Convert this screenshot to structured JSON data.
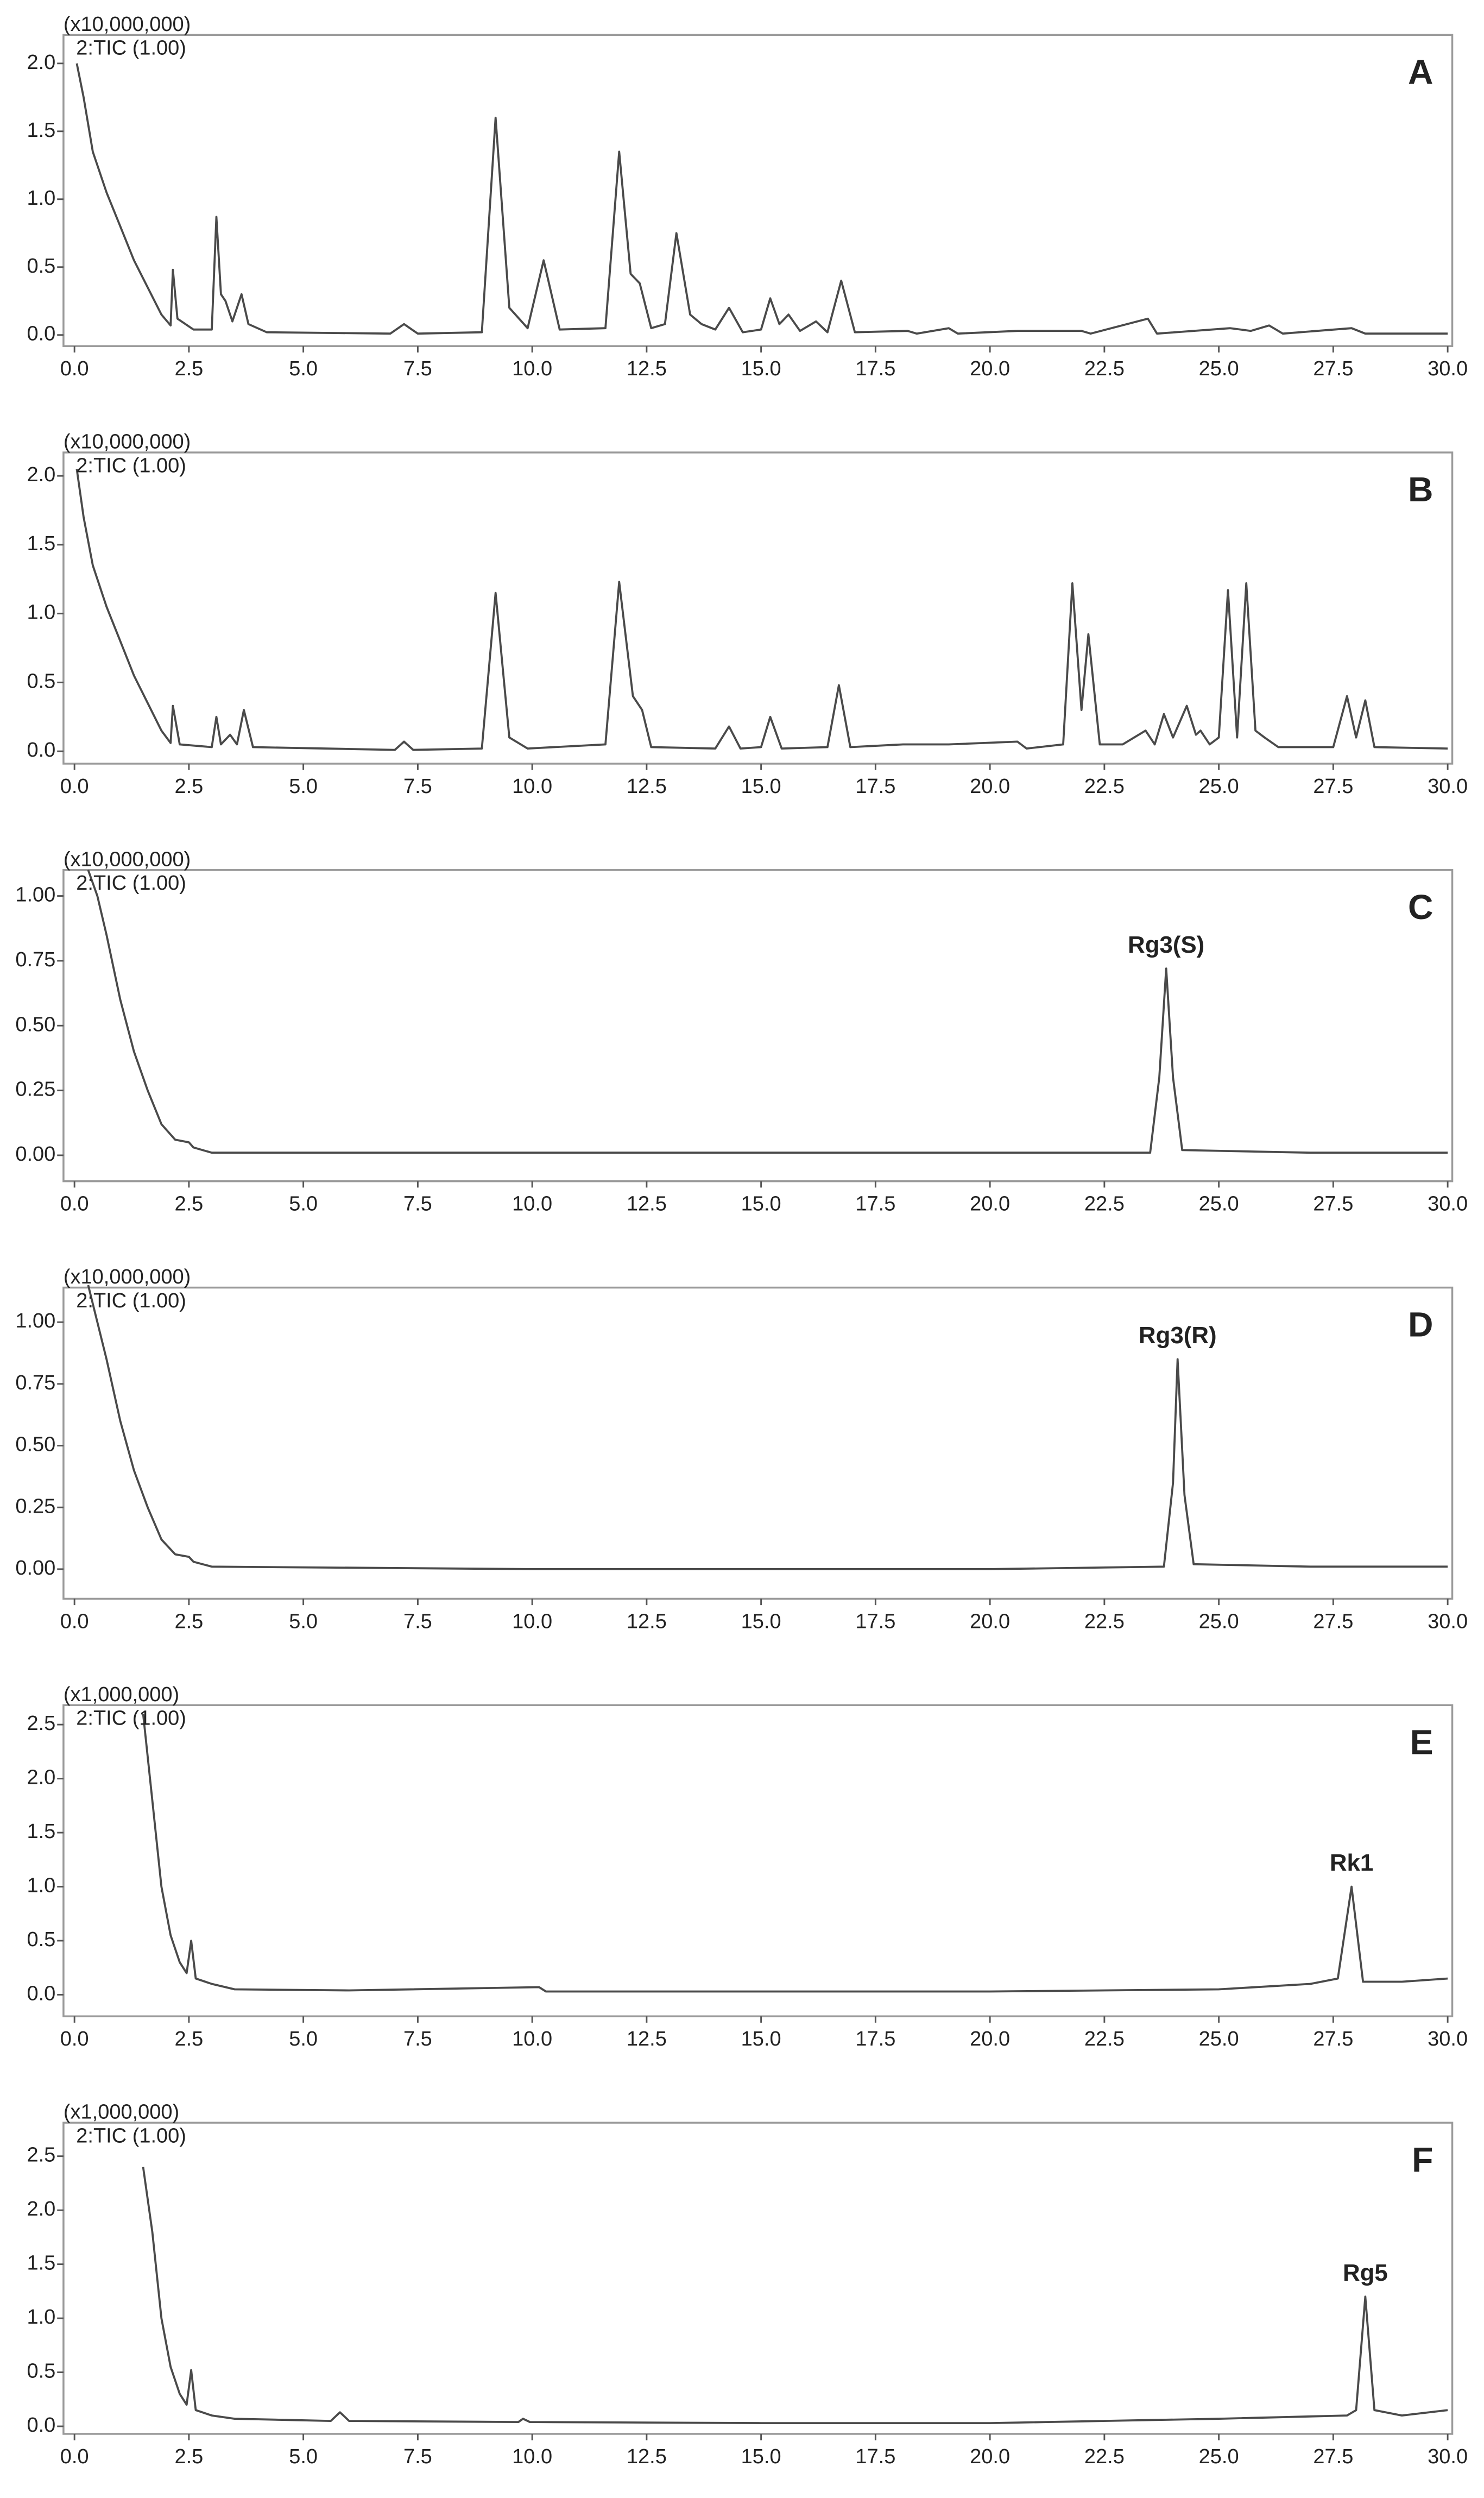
{
  "chart_data": [
    {
      "type": "line",
      "title": "A",
      "y_multiplier": "(x10,000,000)",
      "x": [
        0.05,
        0.2,
        0.4,
        0.7,
        1.0,
        1.3,
        1.6,
        1.9,
        2.1,
        2.15,
        2.25,
        2.6,
        3.0,
        3.1,
        3.2,
        3.3,
        3.45,
        3.65,
        3.8,
        4.2,
        6.9,
        7.2,
        7.5,
        8.9,
        9.2,
        9.5,
        9.9,
        10.25,
        10.6,
        11.6,
        11.9,
        12.15,
        12.35,
        12.6,
        12.9,
        13.15,
        13.45,
        13.7,
        14.0,
        14.3,
        14.6,
        15.0,
        15.2,
        15.4,
        15.6,
        15.85,
        16.2,
        16.45,
        16.75,
        17.05,
        18.2,
        18.4,
        19.1,
        19.3,
        20.6,
        22.0,
        22.2,
        23.45,
        23.65,
        25.25,
        25.7,
        26.1,
        26.4,
        27.9,
        28.2,
        30.0
      ],
      "series": [
        {
          "name": "2:TIC (1.00)",
          "color": "#4a4a4a",
          "values": [
            2.0,
            1.75,
            1.35,
            1.05,
            0.8,
            0.55,
            0.35,
            0.15,
            0.07,
            0.48,
            0.12,
            0.04,
            0.04,
            0.87,
            0.3,
            0.25,
            0.1,
            0.3,
            0.08,
            0.02,
            0.01,
            0.08,
            0.01,
            0.02,
            1.6,
            0.2,
            0.05,
            0.55,
            0.04,
            0.05,
            1.35,
            0.45,
            0.38,
            0.05,
            0.08,
            0.75,
            0.15,
            0.08,
            0.04,
            0.2,
            0.02,
            0.04,
            0.27,
            0.08,
            0.15,
            0.03,
            0.1,
            0.02,
            0.4,
            0.02,
            0.03,
            0.01,
            0.05,
            0.01,
            0.03,
            0.03,
            0.01,
            0.12,
            0.01,
            0.05,
            0.03,
            0.07,
            0.01,
            0.05,
            0.01,
            0.01
          ]
        }
      ],
      "xlim": [
        -0.24,
        30.1
      ],
      "xticks": [
        {
          "value": 0,
          "label": "0.0"
        },
        2.5,
        {
          "value": 5,
          "label": "5.0"
        },
        7.5,
        {
          "value": 10,
          "label": "10.0"
        },
        12.5,
        {
          "value": 15,
          "label": "15.0"
        },
        17.5,
        {
          "value": 20,
          "label": "20.0"
        },
        22.5,
        {
          "value": 25,
          "label": "25.0"
        },
        27.5,
        {
          "value": 30,
          "label": "30.0"
        }
      ],
      "ylim": [
        -0.082,
        2.21
      ],
      "yticks": [
        {
          "value": 0,
          "label": "0.0"
        },
        0.5,
        {
          "value": 1,
          "label": "1.0"
        },
        1.5,
        {
          "value": 2,
          "label": "2.0"
        }
      ]
    },
    {
      "type": "line",
      "title": "B",
      "y_multiplier": "(x10,000,000)",
      "x": [
        0.05,
        0.2,
        0.4,
        0.7,
        1.0,
        1.3,
        1.6,
        1.9,
        2.1,
        2.15,
        2.3,
        3.0,
        3.1,
        3.2,
        3.4,
        3.55,
        3.7,
        3.9,
        7.0,
        7.2,
        7.4,
        8.9,
        9.2,
        9.5,
        9.9,
        11.6,
        11.9,
        12.2,
        12.4,
        12.6,
        14.0,
        14.3,
        14.55,
        15.0,
        15.2,
        15.45,
        16.45,
        16.7,
        16.95,
        18.1,
        19.1,
        20.6,
        20.8,
        21.6,
        21.8,
        22.0,
        22.15,
        22.4,
        22.9,
        23.4,
        23.6,
        23.8,
        24.0,
        24.3,
        24.5,
        24.6,
        24.8,
        25.0,
        25.2,
        25.4,
        25.6,
        25.8,
        26.0,
        26.3,
        27.5,
        27.8,
        28.0,
        28.2,
        28.4,
        30.0
      ],
      "series": [
        {
          "name": "2:TIC (1.00)",
          "color": "#4a4a4a",
          "values": [
            2.05,
            1.7,
            1.35,
            1.05,
            0.8,
            0.55,
            0.35,
            0.15,
            0.06,
            0.33,
            0.05,
            0.03,
            0.25,
            0.05,
            0.12,
            0.05,
            0.3,
            0.03,
            0.01,
            0.07,
            0.01,
            0.02,
            1.15,
            0.1,
            0.02,
            0.05,
            1.23,
            0.4,
            0.3,
            0.03,
            0.02,
            0.18,
            0.02,
            0.03,
            0.25,
            0.02,
            0.03,
            0.48,
            0.03,
            0.05,
            0.05,
            0.07,
            0.02,
            0.05,
            1.22,
            0.3,
            0.85,
            0.05,
            0.05,
            0.15,
            0.05,
            0.27,
            0.1,
            0.33,
            0.12,
            0.15,
            0.05,
            0.1,
            1.17,
            0.1,
            1.22,
            0.15,
            0.1,
            0.03,
            0.03,
            0.4,
            0.1,
            0.37,
            0.03,
            0.02
          ]
        }
      ],
      "xlim": [
        -0.24,
        30.1
      ],
      "xticks": [
        {
          "value": 0,
          "label": "0.0"
        },
        2.5,
        {
          "value": 5,
          "label": "5.0"
        },
        7.5,
        {
          "value": 10,
          "label": "10.0"
        },
        12.5,
        {
          "value": 15,
          "label": "15.0"
        },
        17.5,
        {
          "value": 20,
          "label": "20.0"
        },
        22.5,
        {
          "value": 25,
          "label": "25.0"
        },
        27.5,
        {
          "value": 30,
          "label": "30.0"
        }
      ],
      "ylim": [
        -0.09,
        2.17
      ],
      "yticks": [
        {
          "value": 0,
          "label": "0.0"
        },
        0.5,
        {
          "value": 1,
          "label": "1.0"
        },
        1.5,
        {
          "value": 2,
          "label": "2.0"
        }
      ]
    },
    {
      "type": "line",
      "title": "C",
      "y_multiplier": "(x10,000,000)",
      "annotation": "Rg3(S)",
      "x": [
        0.3,
        0.5,
        0.7,
        1.0,
        1.3,
        1.6,
        1.9,
        2.2,
        2.5,
        2.6,
        3.0,
        10.0,
        20.0,
        23.5,
        23.7,
        23.85,
        24.0,
        24.2,
        27.0,
        30.0
      ],
      "series": [
        {
          "name": "2:TIC (1.00)",
          "color": "#4a4a4a",
          "values": [
            1.1,
            1.0,
            0.85,
            0.6,
            0.4,
            0.25,
            0.12,
            0.06,
            0.05,
            0.03,
            0.01,
            0.01,
            0.01,
            0.01,
            0.3,
            0.72,
            0.3,
            0.02,
            0.01,
            0.01
          ]
        }
      ],
      "xlim": [
        -0.24,
        30.1
      ],
      "xticks": [
        {
          "value": 0,
          "label": "0.0"
        },
        2.5,
        {
          "value": 5,
          "label": "5.0"
        },
        7.5,
        {
          "value": 10,
          "label": "10.0"
        },
        12.5,
        {
          "value": 15,
          "label": "15.0"
        },
        17.5,
        {
          "value": 20,
          "label": "20.0"
        },
        22.5,
        {
          "value": 25,
          "label": "25.0"
        },
        27.5,
        {
          "value": 30,
          "label": "30.0"
        }
      ],
      "ylim": [
        -0.1,
        1.1
      ],
      "yticks": [
        {
          "value": 0,
          "label": "0.00"
        },
        0.25,
        {
          "value": 0.5,
          "label": "0.50"
        },
        0.75,
        {
          "value": 1,
          "label": "1.00"
        }
      ]
    },
    {
      "type": "line",
      "title": "D",
      "y_multiplier": "(x10,000,000)",
      "annotation": "Rg3(R)",
      "x": [
        0.3,
        0.5,
        0.7,
        1.0,
        1.3,
        1.6,
        1.9,
        2.2,
        2.5,
        2.6,
        3.0,
        10.0,
        20.0,
        23.8,
        24.0,
        24.1,
        24.25,
        24.45,
        27.0,
        30.0
      ],
      "series": [
        {
          "name": "2:TIC (1.00)",
          "color": "#4a4a4a",
          "values": [
            1.15,
            1.0,
            0.85,
            0.6,
            0.4,
            0.25,
            0.12,
            0.06,
            0.05,
            0.03,
            0.01,
            0,
            0,
            0.01,
            0.35,
            0.85,
            0.3,
            0.02,
            0.01,
            0.01
          ]
        }
      ],
      "xlim": [
        -0.24,
        30.1
      ],
      "xticks": [
        {
          "value": 0,
          "label": "0.0"
        },
        2.5,
        {
          "value": 5,
          "label": "5.0"
        },
        7.5,
        {
          "value": 10,
          "label": "10.0"
        },
        12.5,
        {
          "value": 15,
          "label": "15.0"
        },
        17.5,
        {
          "value": 20,
          "label": "20.0"
        },
        22.5,
        {
          "value": 25,
          "label": "25.0"
        },
        27.5,
        {
          "value": 30,
          "label": "30.0"
        }
      ],
      "ylim": [
        -0.12,
        1.14
      ],
      "yticks": [
        {
          "value": 0,
          "label": "0.00"
        },
        0.25,
        {
          "value": 0.5,
          "label": "0.50"
        },
        0.75,
        {
          "value": 1,
          "label": "1.00"
        }
      ]
    },
    {
      "type": "line",
      "title": "E",
      "y_multiplier": "(x1,000,000)",
      "annotation": "Rk1",
      "x": [
        1.5,
        1.7,
        1.9,
        2.1,
        2.3,
        2.45,
        2.55,
        2.65,
        3.0,
        3.5,
        6.0,
        10.15,
        10.3,
        15.0,
        20.0,
        25.0,
        27.0,
        27.6,
        27.9,
        28.15,
        29.0,
        30.0
      ],
      "series": [
        {
          "name": "2:TIC (1.00)",
          "color": "#4a4a4a",
          "values": [
            2.6,
            1.8,
            1.0,
            0.55,
            0.3,
            0.2,
            0.5,
            0.15,
            0.1,
            0.05,
            0.04,
            0.07,
            0.03,
            0.03,
            0.03,
            0.05,
            0.1,
            0.15,
            1.0,
            0.12,
            0.12,
            0.15
          ]
        }
      ],
      "xlim": [
        -0.24,
        30.1
      ],
      "xticks": [
        {
          "value": 0,
          "label": "0.0"
        },
        2.5,
        {
          "value": 5,
          "label": "5.0"
        },
        7.5,
        {
          "value": 10,
          "label": "10.0"
        },
        12.5,
        {
          "value": 15,
          "label": "15.0"
        },
        17.5,
        {
          "value": 20,
          "label": "20.0"
        },
        22.5,
        {
          "value": 25,
          "label": "25.0"
        },
        27.5,
        {
          "value": 30,
          "label": "30.0"
        }
      ],
      "ylim": [
        -0.2,
        2.68
      ],
      "yticks": [
        {
          "value": 0,
          "label": "0.0"
        },
        0.5,
        {
          "value": 1,
          "label": "1.0"
        },
        1.5,
        {
          "value": 2,
          "label": "2.0"
        },
        2.5
      ]
    },
    {
      "type": "line",
      "title": "F",
      "y_multiplier": "(x1,000,000)",
      "annotation": "Rg5",
      "x": [
        1.5,
        1.7,
        1.9,
        2.1,
        2.3,
        2.45,
        2.55,
        2.65,
        3.0,
        3.5,
        5.6,
        5.8,
        6.0,
        9.7,
        9.8,
        9.95,
        15.0,
        20.0,
        25.0,
        27.8,
        28.0,
        28.2,
        28.4,
        29.0,
        30.0
      ],
      "series": [
        {
          "name": "2:TIC (1.00)",
          "color": "#4a4a4a",
          "values": [
            2.4,
            1.8,
            1.0,
            0.55,
            0.3,
            0.2,
            0.52,
            0.15,
            0.1,
            0.07,
            0.05,
            0.13,
            0.05,
            0.04,
            0.07,
            0.04,
            0.03,
            0.03,
            0.07,
            0.1,
            0.15,
            1.2,
            0.15,
            0.1,
            0.15
          ]
        }
      ],
      "xlim": [
        -0.24,
        30.1
      ],
      "xticks": [
        {
          "value": 0,
          "label": "0.0"
        },
        2.5,
        {
          "value": 5,
          "label": "5.0"
        },
        7.5,
        {
          "value": 10,
          "label": "10.0"
        },
        12.5,
        {
          "value": 15,
          "label": "15.0"
        },
        17.5,
        {
          "value": 20,
          "label": "20.0"
        },
        22.5,
        {
          "value": 25,
          "label": "25.0"
        },
        27.5,
        {
          "value": 30,
          "label": "30.0"
        }
      ],
      "ylim": [
        -0.07,
        2.81
      ],
      "yticks": [
        {
          "value": 0,
          "label": "0.0"
        },
        0.5,
        {
          "value": 1,
          "label": "1.0"
        },
        1.5,
        {
          "value": 2,
          "label": "2.0"
        },
        2.5
      ]
    }
  ]
}
